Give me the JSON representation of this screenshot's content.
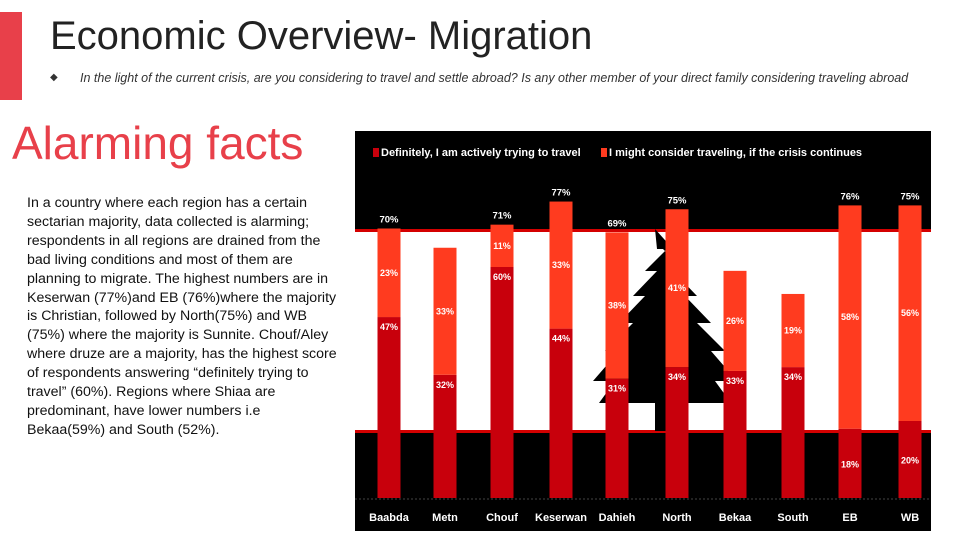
{
  "header": {
    "title": "Economic Overview- Migration",
    "question": "In the light of the current crisis, are you considering to travel and settle abroad? Is any other member of your direct family considering traveling abroad"
  },
  "left": {
    "heading": "Alarming facts",
    "body": "In a country where each region has a certain sectarian majority, data collected is alarming; respondents in all regions are drained from the bad living conditions and most of them are planning to migrate. The highest numbers are in Keserwan (77%)and EB (76%)where the majority is Christian, followed by North(75%) and WB (75%) where the majority is Sunnite. Chouf/Aley where druze are a majority, has the highest score of respondents answering “definitely trying to travel” (60%). Regions where Shiaa are predominant, have lower numbers i.e Bekaa(59%) and South (52%)."
  },
  "chart_data": {
    "type": "bar",
    "stacked": true,
    "categories": [
      "Baabda",
      "Metn",
      "Chouf",
      "Keserwan",
      "Dahieh",
      "North",
      "Bekaa",
      "South",
      "EB",
      "WB"
    ],
    "series": [
      {
        "name": "Definitely, I am actively trying to travel",
        "color": "#c8000c",
        "values": [
          47,
          32,
          60,
          44,
          31,
          34,
          33,
          34,
          18,
          20
        ]
      },
      {
        "name": "I might consider traveling, if the crisis continues",
        "color": "#ff3b1f",
        "values": [
          23,
          33,
          11,
          33,
          38,
          41,
          26,
          19,
          58,
          56
        ]
      }
    ],
    "series_labels": [
      [
        "47%",
        "32%",
        "60%",
        "44%",
        "31%",
        "34%",
        "33%",
        "34%",
        "18%",
        "20%"
      ],
      [
        "23%",
        "33%",
        "11%",
        "33%",
        "38%",
        "41%",
        "26%",
        "19%",
        "58%",
        "56%"
      ]
    ],
    "totals": [
      "70%",
      "65%",
      "71%",
      "77%",
      "69%",
      "75%",
      "59%",
      "52%",
      "76%",
      "75%"
    ],
    "ylim": [
      0,
      80
    ],
    "legend_position": "top",
    "background": "#000000"
  }
}
